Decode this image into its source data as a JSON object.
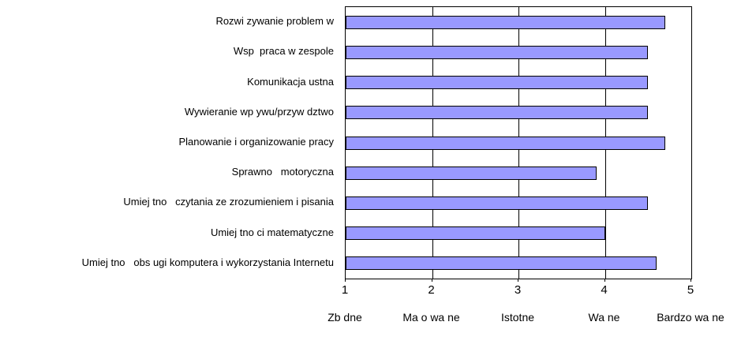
{
  "chart_data": {
    "type": "bar",
    "orientation": "horizontal",
    "title": "",
    "categories": [
      "Rozwi zywanie problem w",
      "Wsp  praca w zespole",
      "Komunikacja ustna",
      "Wywieranie wp ywu/przyw dztwo",
      "Planowanie i organizowanie pracy",
      "Sprawno   motoryczna",
      "Umiej tno   czytania ze zrozumieniem i pisania",
      "Umiej tno ci matematyczne",
      "Umiej tno   obs ugi komputera i wykorzystania Internetu"
    ],
    "values": [
      4.7,
      4.5,
      4.5,
      4.5,
      4.7,
      3.9,
      4.5,
      4.0,
      4.6
    ],
    "xlim": [
      1,
      5
    ],
    "x_ticks": [
      1,
      2,
      3,
      4,
      5
    ],
    "x_tick_labels": [
      "1",
      "2",
      "3",
      "4",
      "5"
    ],
    "x_scale_labels": [
      "Zb dne",
      "Ma o wa ne",
      "Istotne",
      "Wa ne",
      "Bardzo wa ne"
    ],
    "grid": true,
    "legend": false,
    "bar_color": "#9999ff",
    "bar_border_color": "#000000",
    "axis_color": "#000000",
    "background_color": "#ffffff"
  }
}
